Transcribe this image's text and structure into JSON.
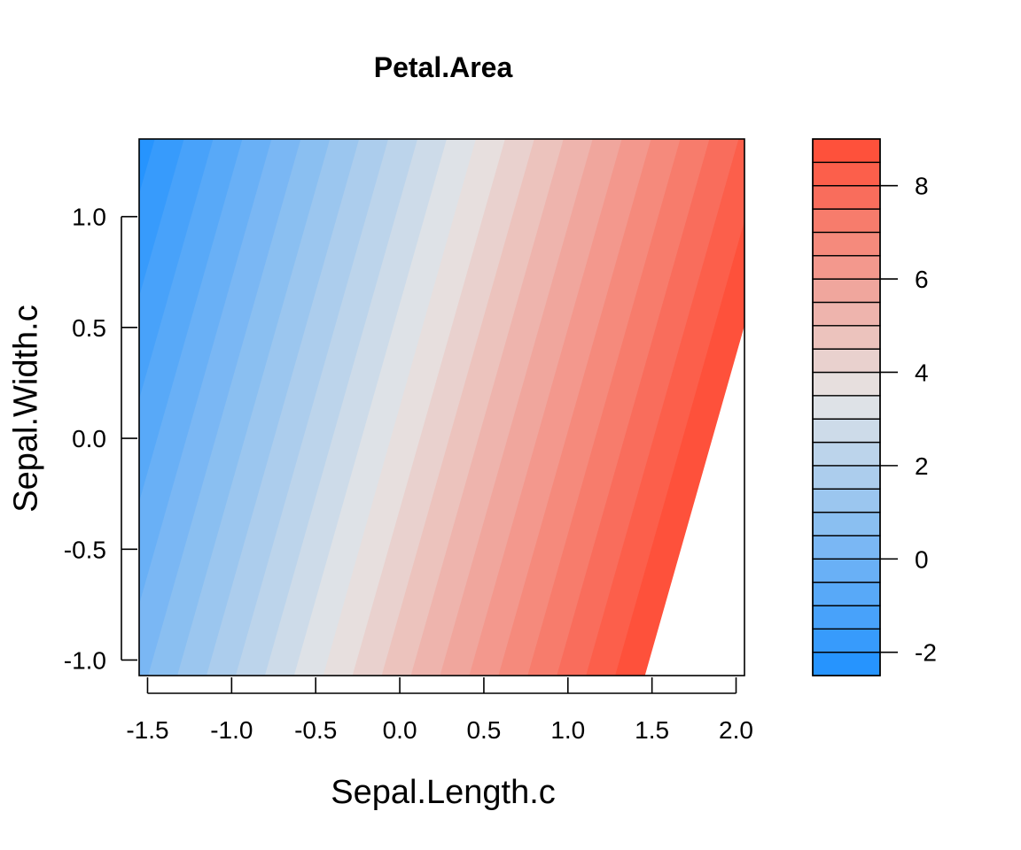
{
  "chart_data": {
    "type": "heatmap",
    "subtype": "filled-contour",
    "title": "Petal.Area",
    "xlabel": "Sepal.Length.c",
    "ylabel": "Sepal.Width.c",
    "xlim": [
      -1.55,
      2.05
    ],
    "ylim": [
      -1.07,
      1.35
    ],
    "x_ticks": [
      -1.5,
      -1.0,
      -0.5,
      0.0,
      0.5,
      1.0,
      1.5,
      2.0
    ],
    "x_tick_labels": [
      "-1.5",
      "-1.0",
      "-0.5",
      "0.0",
      "0.5",
      "1.0",
      "1.5",
      "2.0"
    ],
    "y_ticks": [
      -1.0,
      -0.5,
      0.0,
      0.5,
      1.0
    ],
    "y_tick_labels": [
      "-1.0",
      "-0.5",
      "0.0",
      "0.5",
      "1.0"
    ],
    "surface": {
      "form": "linear",
      "intercept": 3.65,
      "coef_x": 2.88,
      "coef_y": -1.08
    },
    "levels": [
      -2.5,
      -2.0,
      -1.5,
      -1.0,
      -0.5,
      0.0,
      0.5,
      1.0,
      1.5,
      2.0,
      2.5,
      3.0,
      3.5,
      4.0,
      4.5,
      5.0,
      5.5,
      6.0,
      6.5,
      7.0,
      7.5,
      8.0,
      8.5,
      9.0
    ],
    "colorbar": {
      "ticks": [
        -2,
        0,
        2,
        4,
        6,
        8
      ],
      "tick_labels": [
        "-2",
        "0",
        "2",
        "4",
        "6",
        "8"
      ]
    },
    "palette": {
      "low": "#1e90ff",
      "mid": "#e6e6e6",
      "high": "#ff4a33",
      "mid_value": 3.5
    },
    "legend": "right",
    "grid": false
  }
}
